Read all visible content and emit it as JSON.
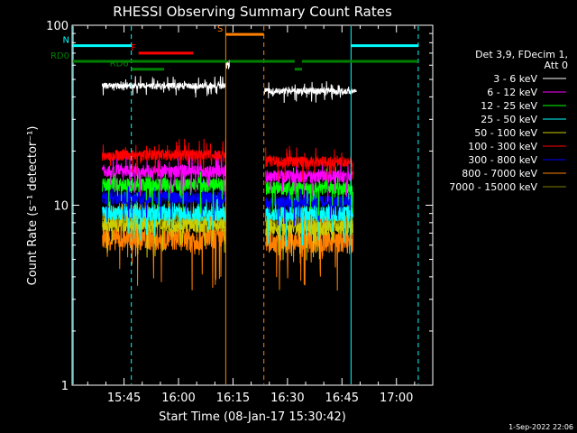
{
  "chart_data": {
    "type": "line",
    "title": "RHESSI Observing Summary Count Rates",
    "xlabel": "Start Time (08-Jan-17 15:30:42)",
    "ylabel": "Count Rate (s⁻¹ detector⁻¹)",
    "y_scale": "log",
    "ylim": [
      1,
      100
    ],
    "y_ticks": [
      {
        "value": 1,
        "label": "1"
      },
      {
        "value": 10,
        "label": "10"
      },
      {
        "value": 100,
        "label": "100"
      }
    ],
    "xlim": [
      "15:30:42",
      "17:10:00"
    ],
    "x_ticks": [
      {
        "time": "15:45",
        "label": "15:45"
      },
      {
        "time": "16:00",
        "label": "16:00"
      },
      {
        "time": "16:15",
        "label": "16:15"
      },
      {
        "time": "16:30",
        "label": "16:30"
      },
      {
        "time": "16:45",
        "label": "16:45"
      },
      {
        "time": "17:00",
        "label": "17:00"
      }
    ],
    "legend": {
      "placement": "right",
      "header": [
        "Det 3,9, FDecim 1,",
        "Att 0"
      ],
      "entries": [
        {
          "name": "3 - 6 keV",
          "color": "#ffffff"
        },
        {
          "name": "6 - 12 keV",
          "color": "#ff00ff"
        },
        {
          "name": "12 - 25 keV",
          "color": "#00ff00"
        },
        {
          "name": "25 - 50 keV",
          "color": "#00ffff"
        },
        {
          "name": "50 - 100 keV",
          "color": "#cccc00"
        },
        {
          "name": "100 - 300 keV",
          "color": "#ff0000"
        },
        {
          "name": "300 - 800 keV",
          "color": "#0000ff"
        },
        {
          "name": "800 - 7000 keV",
          "color": "#ff8000"
        },
        {
          "name": "7000 - 15000 keV",
          "color": "#808000"
        }
      ]
    },
    "series": [
      {
        "name": "3 - 6 keV",
        "color": "#ffffff",
        "segments": [
          {
            "start": "15:39:00",
            "end": "16:13:00",
            "level": 46,
            "noise": 0.04
          },
          {
            "start": "16:13:00",
            "end": "16:14:00",
            "level": 60,
            "noise": 0.05
          },
          {
            "start": "16:23:30",
            "end": "16:49:00",
            "level": 43,
            "noise": 0.04
          }
        ]
      },
      {
        "name": "6 - 12 keV",
        "color": "#ff00ff",
        "segments": [
          {
            "start": "15:39:00",
            "end": "16:13:00",
            "level": 15.5,
            "noise": 0.08
          },
          {
            "start": "16:24:00",
            "end": "16:48:00",
            "level": 14.5,
            "noise": 0.08
          }
        ]
      },
      {
        "name": "12 - 25 keV",
        "color": "#00ff00",
        "segments": [
          {
            "start": "15:39:00",
            "end": "16:13:00",
            "level": 13,
            "noise": 0.09
          },
          {
            "start": "16:24:00",
            "end": "16:48:00",
            "level": 12.5,
            "noise": 0.09
          }
        ]
      },
      {
        "name": "25 - 50 keV",
        "color": "#00ffff",
        "segments": [
          {
            "start": "15:39:00",
            "end": "16:13:00",
            "level": 9,
            "noise": 0.1
          },
          {
            "start": "16:24:00",
            "end": "16:48:00",
            "level": 9,
            "noise": 0.1
          }
        ]
      },
      {
        "name": "50 - 100 keV",
        "color": "#cccc00",
        "segments": [
          {
            "start": "15:39:00",
            "end": "16:13:00",
            "level": 7.8,
            "noise": 0.1
          },
          {
            "start": "16:24:00",
            "end": "16:48:00",
            "level": 7.5,
            "noise": 0.1
          }
        ]
      },
      {
        "name": "100 - 300 keV",
        "color": "#ff0000",
        "segments": [
          {
            "start": "15:39:00",
            "end": "16:13:00",
            "level": 19,
            "noise": 0.07
          },
          {
            "start": "16:24:00",
            "end": "16:48:00",
            "level": 17.5,
            "noise": 0.07
          }
        ]
      },
      {
        "name": "300 - 800 keV",
        "color": "#0000ff",
        "segments": [
          {
            "start": "15:39:00",
            "end": "16:13:00",
            "level": 11,
            "noise": 0.08
          },
          {
            "start": "16:24:00",
            "end": "16:48:00",
            "level": 10.5,
            "noise": 0.08
          }
        ]
      },
      {
        "name": "800 - 7000 keV",
        "color": "#ff8000",
        "segments": [
          {
            "start": "15:39:00",
            "end": "16:13:00",
            "level": 6.5,
            "noise": 0.14
          },
          {
            "start": "16:24:00",
            "end": "16:48:00",
            "level": 6.3,
            "noise": 0.14
          }
        ]
      },
      {
        "name": "7000 - 15000 keV",
        "color": "#808000",
        "segments": [
          {
            "start": "15:39:00",
            "end": "16:13:00",
            "level": 8.5,
            "noise": 0.08
          },
          {
            "start": "16:24:00",
            "end": "16:48:00",
            "level": 8.2,
            "noise": 0.08
          }
        ]
      }
    ],
    "vertical_lines": [
      {
        "time": "15:31:00",
        "color": "#00ffff",
        "style": "solid"
      },
      {
        "time": "15:47:00",
        "color": "#00ffff",
        "style": "dashed"
      },
      {
        "time": "16:13:00",
        "color": "#ff8000",
        "style": "solid"
      },
      {
        "time": "16:23:30",
        "color": "#ff8000",
        "style": "dashed"
      },
      {
        "time": "16:47:30",
        "color": "#00ffff",
        "style": "solid"
      },
      {
        "time": "17:06:00",
        "color": "#00ffff",
        "style": "dashed"
      }
    ],
    "flag_bars": [
      {
        "label": "N",
        "color": "#00ffff",
        "level": 77,
        "intervals": [
          [
            "15:30:42",
            "15:47:00"
          ],
          [
            "16:47:30",
            "17:06:00"
          ]
        ]
      },
      {
        "label": "S",
        "color": "#ff8000",
        "level": 89,
        "intervals": [
          [
            "16:13:00",
            "16:23:30"
          ]
        ]
      },
      {
        "label": "F",
        "color": "#ff0000",
        "level": 70,
        "intervals": [
          [
            "15:49:00",
            "16:04:00"
          ]
        ]
      },
      {
        "label": "RD0",
        "color": "#008000",
        "level": 63,
        "intervals": [
          [
            "15:30:42",
            "16:13:30"
          ],
          [
            "16:14:00",
            "16:32:00"
          ],
          [
            "16:34:00",
            "17:06:00"
          ]
        ]
      },
      {
        "label": "RD6",
        "color": "#008000",
        "level": 57,
        "intervals": [
          [
            "15:47:00",
            "15:56:00"
          ],
          [
            "16:32:00",
            "16:34:00"
          ]
        ]
      }
    ]
  },
  "footer": {
    "timestamp": "1-Sep-2022 22:06"
  }
}
